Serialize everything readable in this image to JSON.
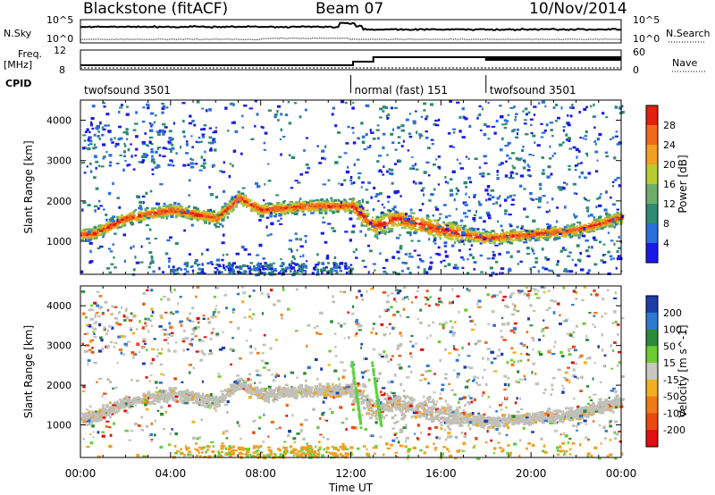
{
  "header": {
    "station": "Blackstone (fitACF)",
    "beam": "Beam 07",
    "date": "10/Nov/2014"
  },
  "noise_panel": {
    "left_label": "N.Sky",
    "right_label": "N.Search",
    "left_ticks": [
      "10^5",
      "10^0"
    ],
    "right_ticks": [
      "10^5",
      "10^0"
    ]
  },
  "freq_panel": {
    "left_label_1": "Freq.",
    "left_label_2": "[MHz]",
    "left_ticks": [
      "12",
      "8"
    ],
    "right_label": "Nave",
    "right_ticks": [
      "60",
      "0"
    ]
  },
  "cpid_panel": {
    "label": "CPID",
    "segments": [
      {
        "name": "twofsound 3501",
        "start_hour": 0,
        "end_hour": 12
      },
      {
        "name": "normal (fast) 151",
        "start_hour": 12,
        "end_hour": 18
      },
      {
        "name": "twofsound 3501",
        "start_hour": 18,
        "end_hour": 24
      }
    ]
  },
  "chart_data": [
    {
      "type": "heatmap",
      "parameter": "power",
      "ylabel": "Slant Range [km]",
      "xlabel": "Time UT",
      "xlim_hours": [
        0,
        24
      ],
      "ylim": [
        180,
        4500
      ],
      "yticks": [
        1000,
        2000,
        3000,
        4000
      ],
      "colorbar_label": "Power [dB]",
      "colorbar_ticks": [
        4,
        8,
        12,
        16,
        20,
        24,
        28
      ],
      "colorbar_colors": [
        "#1a1ae6",
        "#2a6edc",
        "#2f8a72",
        "#6fae6a",
        "#b8cc30",
        "#f2a020",
        "#f06a18",
        "#e02010"
      ],
      "features": [
        {
          "desc": "main band",
          "times": [
            0.5,
            2,
            4,
            6,
            7,
            8,
            10,
            12,
            13,
            14,
            16,
            18,
            20,
            22,
            23.8
          ],
          "ranges": [
            1200,
            1600,
            1800,
            1600,
            2100,
            1800,
            1900,
            1900,
            1400,
            1600,
            1300,
            1100,
            1200,
            1300,
            1600
          ]
        }
      ]
    },
    {
      "type": "heatmap",
      "parameter": "velocity",
      "ylabel": "Slant Range [km]",
      "xlabel": "Time UT",
      "xlim_hours": [
        0,
        24
      ],
      "ylim": [
        180,
        4500
      ],
      "yticks": [
        1000,
        2000,
        3000,
        4000
      ],
      "colorbar_label": "Velocity [m s^-1]",
      "colorbar_ticks": [
        200,
        100,
        50,
        15,
        -15,
        -50,
        -100,
        -200
      ],
      "colorbar_colors": [
        "#1c3ca8",
        "#2e7ad2",
        "#2e8a3a",
        "#6ccc30",
        "#c8c8c0",
        "#f0b020",
        "#f07a18",
        "#e84a10",
        "#e01010"
      ]
    }
  ],
  "xaxis": {
    "ticks": [
      "00:00",
      "04:00",
      "08:00",
      "12:00",
      "16:00",
      "20:00",
      "00:00"
    ],
    "label": "Time UT"
  },
  "colors": {
    "gray_scatter": "#c0c0b8",
    "green_scatter": "#5fd23c",
    "orange_scatter": "#f0a020"
  }
}
